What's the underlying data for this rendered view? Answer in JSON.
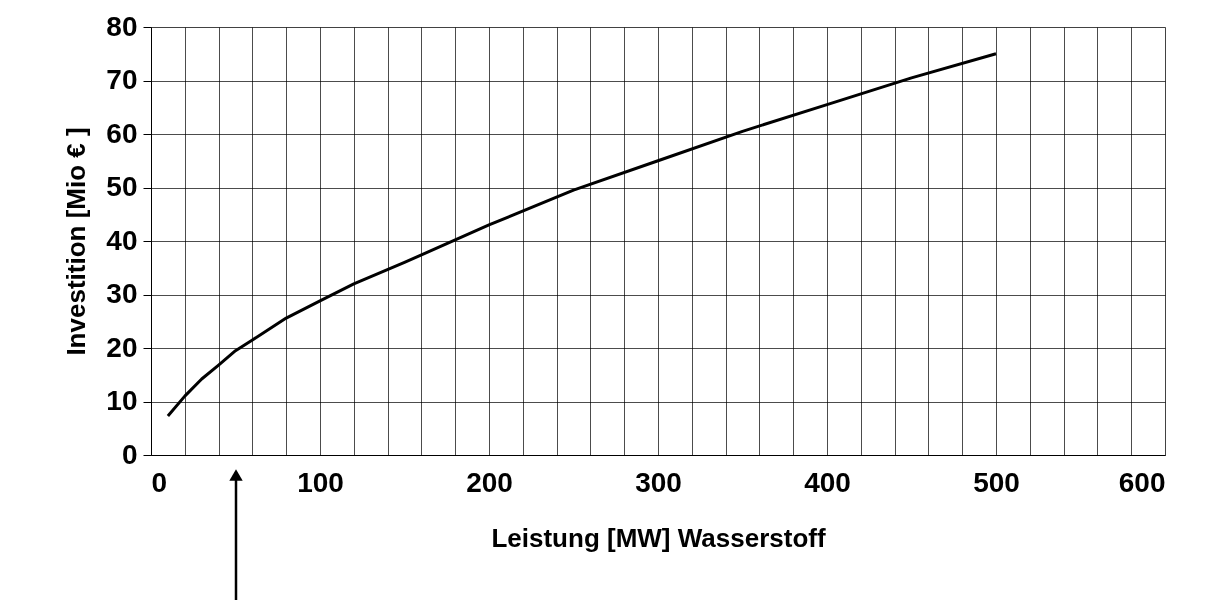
{
  "chart_data": {
    "type": "line",
    "xlabel": "Leistung [MW] Wasserstoff",
    "ylabel": "Investition [Mio € ]",
    "x": [
      10,
      20,
      30,
      40,
      50,
      60,
      80,
      100,
      120,
      150,
      200,
      250,
      300,
      350,
      400,
      450,
      500
    ],
    "series": [
      {
        "color": "#000000",
        "values": [
          7.3,
          11.0,
          14.2,
          16.8,
          19.5,
          21.5,
          25.6,
          28.8,
          32,
          36,
          43,
          49.5,
          55,
          60.5,
          65.5,
          70.5,
          75
        ]
      }
    ],
    "xlim": [
      0,
      600
    ],
    "ylim": [
      0,
      80
    ],
    "xticks": [
      0,
      {
        "value": 20,
        "label": null
      },
      {
        "value": 40,
        "label": null
      },
      {
        "value": 60,
        "label": null
      },
      {
        "value": 80,
        "label": null
      },
      100,
      {
        "value": 120,
        "label": null
      },
      {
        "value": 140,
        "label": null
      },
      {
        "value": 160,
        "label": null
      },
      {
        "value": 180,
        "label": null
      },
      200,
      {
        "value": 220,
        "label": null
      },
      {
        "value": 240,
        "label": null
      },
      {
        "value": 260,
        "label": null
      },
      {
        "value": 280,
        "label": null
      },
      300,
      {
        "value": 320,
        "label": null
      },
      {
        "value": 340,
        "label": null
      },
      {
        "value": 360,
        "label": null
      },
      {
        "value": 380,
        "label": null
      },
      400,
      {
        "value": 420,
        "label": null
      },
      {
        "value": 440,
        "label": null
      },
      {
        "value": 460,
        "label": null
      },
      {
        "value": 480,
        "label": null
      },
      500,
      {
        "value": 520,
        "label": null
      },
      {
        "value": 540,
        "label": null
      },
      {
        "value": 560,
        "label": null
      },
      {
        "value": 580,
        "label": null
      },
      600
    ],
    "yticks": [
      0,
      10,
      20,
      30,
      40,
      50,
      60,
      70,
      80
    ],
    "grid": true,
    "marker": "none",
    "line_style": "solid"
  }
}
